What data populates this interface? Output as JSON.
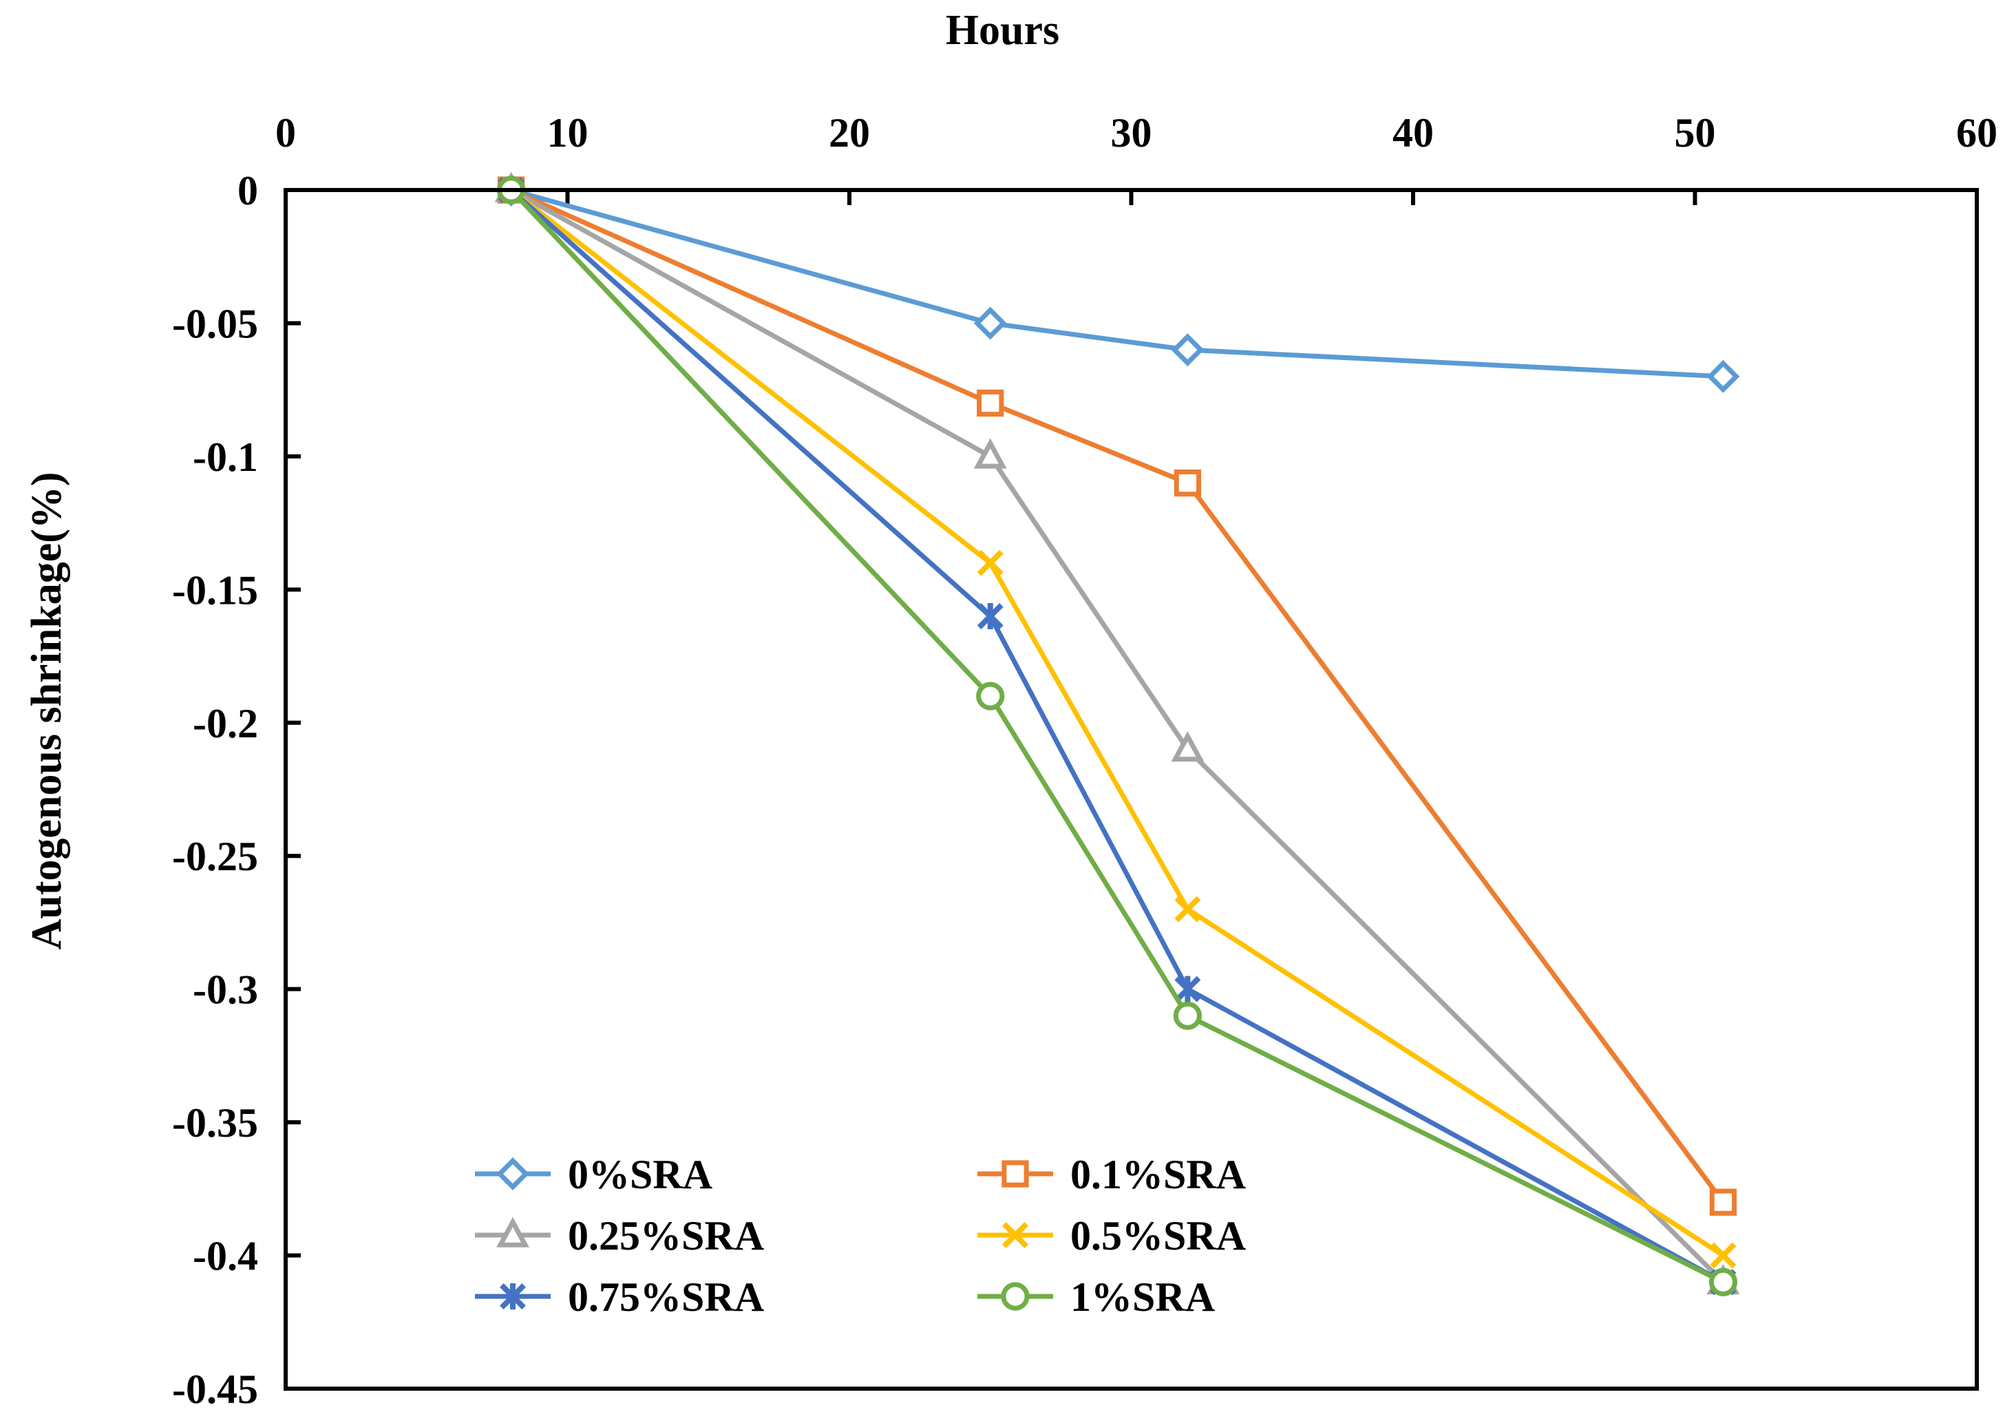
{
  "chart_data": {
    "type": "line",
    "title": "",
    "xlabel": "Hours",
    "ylabel": "Autogenous shrinkage(%)",
    "xlim": [
      0,
      60
    ],
    "ylim": [
      -0.45,
      0
    ],
    "x_axis_position": "top",
    "x_ticks": [
      0,
      10,
      20,
      30,
      40,
      50,
      60
    ],
    "x_tick_labels": [
      "0",
      "10",
      "20",
      "30",
      "40",
      "50",
      "60"
    ],
    "y_ticks": [
      0,
      -0.05,
      -0.1,
      -0.15,
      -0.2,
      -0.25,
      -0.3,
      -0.35,
      -0.4,
      -0.45
    ],
    "y_tick_labels": [
      "0",
      "-0.05",
      "-0.1",
      "-0.15",
      "-0.2",
      "-0.25",
      "-0.3",
      "-0.35",
      "-0.4",
      "-0.45"
    ],
    "grid": false,
    "legend_position": "bottom-left",
    "x": [
      8,
      25,
      32,
      51
    ],
    "series": [
      {
        "name": "0%SRA",
        "values": [
          0,
          -0.05,
          -0.06,
          -0.07
        ],
        "color": "#5B9BD5",
        "marker": "diamond"
      },
      {
        "name": "0.1%SRA",
        "values": [
          0,
          -0.08,
          -0.11,
          -0.38
        ],
        "color": "#ED7D31",
        "marker": "square"
      },
      {
        "name": "0.25%SRA",
        "values": [
          0,
          -0.1,
          -0.21,
          -0.41
        ],
        "color": "#A5A5A5",
        "marker": "triangle"
      },
      {
        "name": "0.5%SRA",
        "values": [
          0,
          -0.14,
          -0.27,
          -0.4
        ],
        "color": "#FFC000",
        "marker": "x"
      },
      {
        "name": "0.75%SRA",
        "values": [
          0,
          -0.16,
          -0.3,
          -0.41
        ],
        "color": "#4472C4",
        "marker": "asterisk"
      },
      {
        "name": "1%SRA",
        "values": [
          0,
          -0.19,
          -0.31,
          -0.41
        ],
        "color": "#70AD47",
        "marker": "circle"
      }
    ]
  }
}
